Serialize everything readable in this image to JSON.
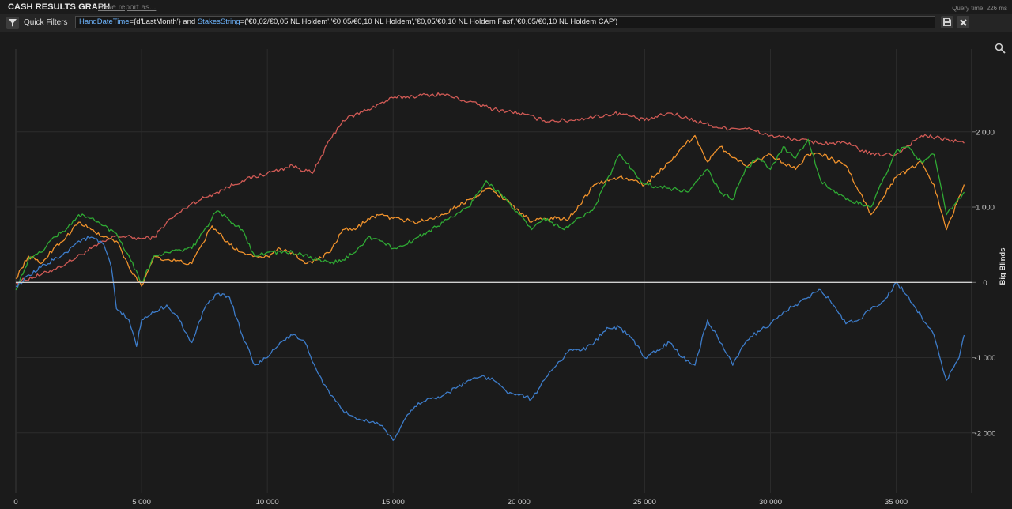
{
  "header": {
    "title": "CASH RESULTS GRAPH",
    "save_link": "Save report as...",
    "query_time": "Query time: 226 ms"
  },
  "filter": {
    "quick_filters_label": "Quick Filters",
    "kw1": "HandDateTime",
    "val1": "={d'LastMonth'} and ",
    "kw2": "StakesString",
    "val2": "=('€0,02/€0,05 NL Holdem','€0,05/€0,10 NL Holdem','€0,05/€0,10 NL Holdem Fast','€0,05/€0,10 NL Holdem CAP')"
  },
  "icons": {
    "filter": "funnel-icon",
    "save": "save-icon",
    "close": "close-icon",
    "zoom": "zoom-icon"
  },
  "chart_data": {
    "type": "line",
    "ylabel": "Big Blinds",
    "xlabel": "",
    "xlim": [
      0,
      38000
    ],
    "ylim": [
      -2800,
      3100
    ],
    "x_ticks": [
      0,
      5000,
      10000,
      15000,
      20000,
      25000,
      30000,
      35000
    ],
    "x_tick_labels": [
      "0",
      "5 000",
      "10 000",
      "15 000",
      "20 000",
      "25 000",
      "30 000",
      "35 000"
    ],
    "y_ticks": [
      2000,
      1000,
      0,
      -1000,
      -2000
    ],
    "y_tick_labels": [
      "2 000",
      "1 000",
      "0",
      "-1 000",
      "-2 000"
    ],
    "grid": true,
    "zero_line_color": "#d0d0d0",
    "series": [
      {
        "color": "#d05a55",
        "x": [
          0,
          1000,
          2000,
          3000,
          4000,
          5000,
          5500,
          6000,
          7000,
          8000,
          9000,
          10000,
          11000,
          11800,
          12500,
          13000,
          14000,
          15000,
          16000,
          17000,
          18000,
          19000,
          20000,
          21000,
          22000,
          23000,
          24000,
          25000,
          26000,
          27000,
          28000,
          29000,
          30000,
          31000,
          32000,
          33000,
          34000,
          35000,
          36000,
          37000,
          37700
        ],
        "y": [
          0,
          100,
          250,
          450,
          620,
          580,
          600,
          800,
          1050,
          1200,
          1350,
          1450,
          1550,
          1450,
          1900,
          2150,
          2300,
          2450,
          2480,
          2500,
          2400,
          2300,
          2250,
          2150,
          2150,
          2200,
          2250,
          2150,
          2250,
          2150,
          2050,
          2050,
          1950,
          1900,
          1850,
          1850,
          1700,
          1700,
          1950,
          1900,
          1850
        ]
      },
      {
        "color": "#f0922c",
        "x": [
          0,
          500,
          1000,
          1500,
          2000,
          2500,
          3000,
          3500,
          4000,
          4500,
          5000,
          5500,
          6000,
          7000,
          7800,
          8500,
          9000,
          9500,
          10000,
          10500,
          11000,
          11500,
          12000,
          12500,
          13000,
          13500,
          14000,
          14500,
          15000,
          16000,
          17000,
          18000,
          18800,
          19500,
          20000,
          20500,
          21000,
          21500,
          22000,
          23000,
          24000,
          25000,
          26000,
          26500,
          27000,
          27500,
          28000,
          29000,
          30000,
          31000,
          31500,
          32000,
          33000,
          34000,
          35000,
          35500,
          36000,
          36500,
          37000,
          37700
        ],
        "y": [
          50,
          350,
          250,
          450,
          600,
          800,
          700,
          600,
          550,
          200,
          -50,
          350,
          300,
          250,
          750,
          500,
          400,
          350,
          350,
          450,
          400,
          250,
          300,
          400,
          700,
          700,
          850,
          900,
          850,
          800,
          900,
          1100,
          1250,
          1100,
          950,
          800,
          850,
          850,
          850,
          1300,
          1400,
          1300,
          1600,
          1800,
          1950,
          1600,
          1800,
          1550,
          1700,
          1500,
          1700,
          1700,
          1550,
          900,
          1400,
          1500,
          1600,
          1300,
          700,
          1300
        ]
      },
      {
        "color": "#2faa34",
        "x": [
          0,
          500,
          1000,
          1500,
          2000,
          2500,
          3000,
          3500,
          4000,
          4500,
          5000,
          5500,
          6000,
          7000,
          7500,
          8000,
          9000,
          9500,
          10000,
          11000,
          12000,
          12500,
          13000,
          13500,
          14000,
          14500,
          15000,
          15500,
          16000,
          17000,
          18000,
          18700,
          19500,
          20000,
          20500,
          21000,
          21800,
          22000,
          23000,
          24000,
          24500,
          25000,
          26000,
          26700,
          27500,
          28000,
          28500,
          29000,
          29500,
          30000,
          30500,
          31000,
          31500,
          32000,
          33000,
          34000,
          35000,
          35500,
          36000,
          36500,
          37000,
          37700
        ],
        "y": [
          -100,
          300,
          400,
          600,
          700,
          900,
          850,
          750,
          650,
          350,
          0,
          350,
          400,
          450,
          700,
          950,
          700,
          350,
          400,
          400,
          300,
          250,
          300,
          400,
          600,
          550,
          450,
          500,
          600,
          800,
          1000,
          1350,
          1100,
          900,
          700,
          850,
          700,
          750,
          1000,
          1700,
          1500,
          1300,
          1250,
          1200,
          1500,
          1200,
          1100,
          1500,
          1650,
          1500,
          1800,
          1650,
          1900,
          1350,
          1100,
          1000,
          1750,
          1800,
          1600,
          1700,
          900,
          1200
        ]
      },
      {
        "color": "#3d7cc9",
        "x": [
          0,
          1000,
          2000,
          2500,
          3000,
          3500,
          3800,
          4000,
          4500,
          4800,
          5000,
          5500,
          6000,
          6500,
          7000,
          7500,
          8000,
          8500,
          9000,
          9500,
          10000,
          10500,
          11000,
          11500,
          12000,
          12500,
          13000,
          13500,
          14000,
          14500,
          15000,
          15500,
          16000,
          17000,
          18000,
          18500,
          19000,
          19500,
          20000,
          20500,
          21000,
          21500,
          22000,
          22500,
          23000,
          23500,
          24000,
          24500,
          25000,
          25500,
          26000,
          26500,
          27000,
          27500,
          28000,
          28500,
          29000,
          29500,
          30000,
          30500,
          31000,
          31500,
          32000,
          32500,
          33000,
          33500,
          34000,
          34500,
          35000,
          35500,
          36000,
          36500,
          37000,
          37500,
          37700
        ],
        "y": [
          -50,
          200,
          400,
          550,
          600,
          500,
          200,
          -350,
          -500,
          -850,
          -500,
          -400,
          -300,
          -500,
          -800,
          -350,
          -150,
          -200,
          -700,
          -1100,
          -1000,
          -800,
          -700,
          -800,
          -1200,
          -1500,
          -1700,
          -1800,
          -1850,
          -1900,
          -2100,
          -1800,
          -1600,
          -1500,
          -1300,
          -1250,
          -1300,
          -1450,
          -1500,
          -1550,
          -1300,
          -1100,
          -900,
          -900,
          -800,
          -600,
          -600,
          -750,
          -1000,
          -900,
          -800,
          -1000,
          -1100,
          -500,
          -800,
          -1100,
          -800,
          -650,
          -550,
          -400,
          -300,
          -200,
          -100,
          -300,
          -550,
          -500,
          -350,
          -250,
          0,
          -200,
          -450,
          -700,
          -1300,
          -1000,
          -700
        ]
      }
    ]
  }
}
